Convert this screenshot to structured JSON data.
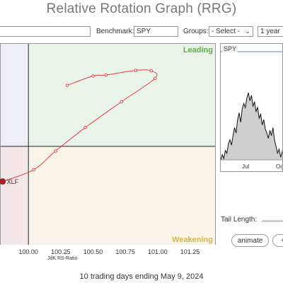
{
  "page": {
    "title": "Relative Rotation Graph (RRG)"
  },
  "toolbar": {
    "benchmark_label": "Benchmark:",
    "benchmark_value": "SPY",
    "groups_label": "Groups:",
    "groups_selected": "- Select -",
    "period_selected": "1 year"
  },
  "chart_data": {
    "type": "scatter",
    "title": "",
    "xlabel": "JdK RS-Ratio",
    "ylabel": "",
    "x_ticks": [
      "100.00",
      "100.25",
      "100.50",
      "100.75",
      "101.00",
      "101.25"
    ],
    "xlim": [
      99.78,
      101.45
    ],
    "ylim": [
      97.9,
      102.2
    ],
    "center": {
      "x": 100.0,
      "y": 100.0
    },
    "quadrants": {
      "leading": "Leading",
      "weakening": "Weakening"
    },
    "colors": {
      "leading": "#eaf3ea",
      "weakening": "#f8f4e8",
      "lagging": "#f5e6ea",
      "improving": "#eeeef7",
      "tail": "#e04040",
      "head": "#cc1111",
      "leading_text": "#5fae4a",
      "weakening_text": "#d7b64a"
    },
    "series": [
      {
        "name": "XLF",
        "points": [
          {
            "x": 100.3,
            "y": 101.3
          },
          {
            "x": 100.5,
            "y": 101.5
          },
          {
            "x": 100.6,
            "y": 101.52
          },
          {
            "x": 100.83,
            "y": 101.62
          },
          {
            "x": 100.95,
            "y": 101.61
          },
          {
            "x": 100.98,
            "y": 101.45
          },
          {
            "x": 100.72,
            "y": 100.95
          },
          {
            "x": 100.44,
            "y": 100.4
          },
          {
            "x": 100.21,
            "y": 99.9
          },
          {
            "x": 100.04,
            "y": 99.5
          },
          {
            "x": 99.8,
            "y": 99.25
          }
        ]
      }
    ]
  },
  "mini_chart": {
    "symbol": "SPY",
    "x_labels": [
      "Jul",
      "Oct"
    ],
    "values": [
      40,
      44,
      41,
      47,
      45,
      52,
      55,
      51,
      58,
      64,
      60,
      70,
      75,
      68,
      78,
      82,
      79,
      86,
      90,
      84,
      88,
      80,
      83,
      76,
      79,
      71,
      74,
      66,
      70,
      63,
      60,
      56,
      62,
      58,
      64,
      55,
      50,
      45,
      48,
      42,
      46,
      52
    ]
  },
  "controls": {
    "tail_length_label": "Tail Length:",
    "animate_label": "animate",
    "plus_label": "+"
  },
  "footer": {
    "text": "10 trading days ending May 9, 2024"
  }
}
